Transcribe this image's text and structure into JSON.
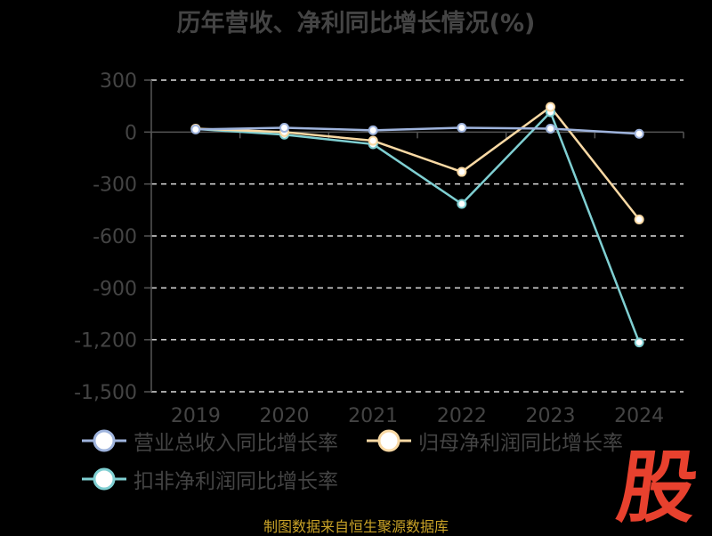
{
  "chart_data": {
    "type": "line",
    "title": "历年营收、净利同比增长情况(%)",
    "categories": [
      "2019",
      "2020",
      "2021",
      "2022",
      "2023",
      "2024"
    ],
    "yticks": [
      "300",
      "0",
      "-300",
      "-600",
      "-900",
      "-1,200",
      "-1,500"
    ],
    "ylim": [
      -1500,
      300
    ],
    "grid": true,
    "legend_position": "bottom",
    "series": [
      {
        "name": "营业总收入同比增长率",
        "color": "#9fb4dd",
        "values": [
          15,
          25,
          10,
          25,
          20,
          -10
        ]
      },
      {
        "name": "归母净利润同比增长率",
        "color": "#f9d9a4",
        "values": [
          20,
          0,
          -50,
          -230,
          145,
          -505
        ]
      },
      {
        "name": "扣非净利润同比增长率",
        "color": "#7fcfd2",
        "values": [
          18,
          -15,
          -70,
          -415,
          115,
          -1215
        ]
      }
    ]
  },
  "source_text": "制图数据来自恒生聚源数据库",
  "logo": {
    "char": "股",
    "color": "#e8412e"
  }
}
